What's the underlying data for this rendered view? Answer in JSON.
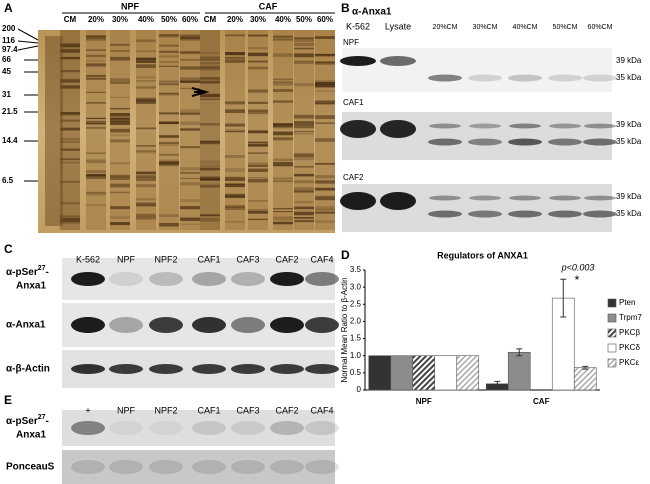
{
  "panels": {
    "A": {
      "letter": "A",
      "groups": [
        "NPF",
        "CAF"
      ],
      "lanes": [
        "CM",
        "20%",
        "30%",
        "40%",
        "50%",
        "60%",
        "CM",
        "20%",
        "30%",
        "40%",
        "50%",
        "60%"
      ],
      "markers": [
        "200",
        "116",
        "97.4",
        "66",
        "45",
        "31",
        "21.5",
        "14.4",
        "6.5"
      ]
    },
    "B": {
      "letter": "B",
      "title": "α-Anxa1",
      "lanes": [
        "K-562",
        "Lysate",
        "20%CM",
        "30%CM",
        "40%CM",
        "50%CM",
        "60%CM"
      ],
      "blots": [
        {
          "label": "NPF",
          "sizes": [
            "39 kDa",
            "35 kDa"
          ]
        },
        {
          "label": "CAF1",
          "sizes": [
            "39 kDa",
            "35 kDa"
          ]
        },
        {
          "label": "CAF2",
          "sizes": [
            "39 kDa",
            "35 kDa"
          ]
        }
      ]
    },
    "C": {
      "letter": "C",
      "lanes": [
        "K-562",
        "NPF",
        "NPF2",
        "CAF1",
        "CAF3",
        "CAF2",
        "CAF4"
      ],
      "rows": [
        {
          "parts": [
            "α-pSer",
            "27",
            "-",
            "Anxa1"
          ]
        },
        {
          "parts": [
            "α-Anxa1"
          ]
        },
        {
          "parts": [
            "α-β-Actin"
          ]
        }
      ]
    },
    "D": {
      "letter": "D"
    },
    "E": {
      "letter": "E",
      "lanes": [
        "+",
        "NPF",
        "NPF2",
        "CAF1",
        "CAF3",
        "CAF2",
        "CAF4"
      ],
      "rows": [
        {
          "parts": [
            "α-pSer",
            "27",
            "-",
            "Anxa1"
          ]
        },
        {
          "parts": [
            "PonceauS"
          ]
        }
      ]
    }
  },
  "chart_data": {
    "type": "bar",
    "title": "Regulators of ANXA1",
    "ylabel": "Normal Mean Ratio to β-Actin",
    "categories": [
      "NPF",
      "CAF"
    ],
    "series": [
      {
        "name": "Pten",
        "color": "#333333",
        "hatch": false,
        "values": [
          1,
          0.18
        ],
        "errors": [
          null,
          0.07
        ]
      },
      {
        "name": "Trpm7",
        "color": "#8c8c8c",
        "hatch": false,
        "values": [
          1,
          1.1
        ],
        "errors": [
          null,
          0.1
        ]
      },
      {
        "name": "PKCβ",
        "color": "#444444",
        "hatch": true,
        "values": [
          1,
          null
        ],
        "errors": [
          null,
          null
        ]
      },
      {
        "name": "PKCδ",
        "color": "#ffffff",
        "hatch": false,
        "values": [
          1,
          2.68
        ],
        "errors": [
          null,
          0.55
        ]
      },
      {
        "name": "PKCε",
        "color": "#b0b0b0",
        "hatch": true,
        "values": [
          1,
          0.65
        ],
        "errors": [
          null,
          0.04
        ]
      }
    ],
    "ylim": [
      0,
      3.5
    ],
    "yticks": [
      0,
      0.5,
      {
        "value": 1,
        "label": "1.0"
      },
      1.5,
      {
        "value": 2,
        "label": "2.0"
      },
      2.5,
      {
        "value": 3,
        "label": "3.0"
      },
      3.5
    ],
    "annotations": [
      "p<0.003",
      "*"
    ]
  }
}
